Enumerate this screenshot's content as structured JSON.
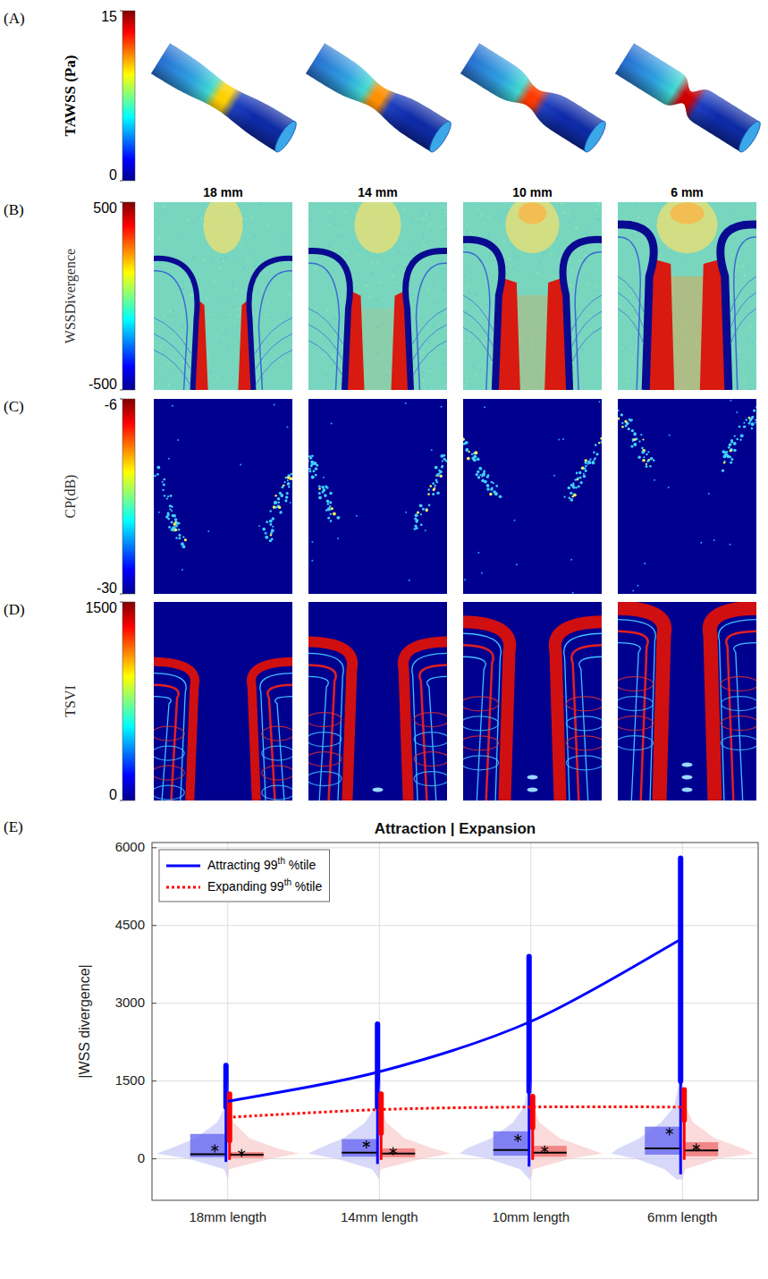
{
  "figure": {
    "columns": [
      "18 mm",
      "14 mm",
      "10 mm",
      "6 mm"
    ],
    "panels": [
      {
        "letter": "(A)",
        "colorbar": {
          "label": "TAWSS (Pa)",
          "range": [
            0,
            15
          ],
          "ticks": [
            0,
            15
          ]
        }
      },
      {
        "letter": "(B)",
        "colorbar": {
          "label": "WSSDivergence",
          "range": [
            -500,
            500
          ],
          "ticks": [
            -500,
            500
          ]
        }
      },
      {
        "letter": "(C)",
        "colorbar": {
          "label": "CP(dB)",
          "range": [
            -30,
            -6
          ],
          "ticks": [
            -30,
            -6
          ]
        }
      },
      {
        "letter": "(D)",
        "colorbar": {
          "label": "TSVI",
          "range": [
            0,
            1500
          ],
          "ticks": [
            0,
            1500
          ]
        }
      },
      {
        "letter": "(E)"
      }
    ]
  },
  "chart_data": {
    "type": "violin",
    "title": "Attraction | Expansion",
    "y_label": "|WSS divergence|",
    "categories": [
      "18mm length",
      "14mm length",
      "10mm length",
      "6mm length"
    ],
    "ylim": [
      -800,
      6100
    ],
    "yticks": [
      0,
      1500,
      3000,
      4500,
      6000
    ],
    "grid": true,
    "legend": "upper left",
    "density_y": [
      -400,
      -200,
      0,
      100,
      200,
      400,
      700,
      1000,
      1500
    ],
    "series": [
      {
        "name": "Attracting 99th %tile",
        "color": "#0000ff",
        "line_style": "solid",
        "type": "line",
        "values": [
          1110,
          1680,
          2650,
          4250
        ],
        "boxes": [
          {
            "whisker_low": -60,
            "q1": 30,
            "median": 90,
            "q3": 480,
            "mean": 200,
            "whisker_high": 1000,
            "max": 1800,
            "density": [
              0,
              0.05,
              0.55,
              1,
              0.8,
              0.45,
              0.15,
              0.04,
              0
            ]
          },
          {
            "whisker_low": -100,
            "q1": 40,
            "median": 120,
            "q3": 380,
            "mean": 280,
            "whisker_high": 1000,
            "max": 2600,
            "density": [
              0,
              0.1,
              0.6,
              1,
              0.85,
              0.5,
              0.2,
              0.06,
              0
            ]
          },
          {
            "whisker_low": -150,
            "q1": 60,
            "median": 170,
            "q3": 530,
            "mean": 400,
            "whisker_high": 1300,
            "max": 3900,
            "density": [
              0.02,
              0.15,
              0.6,
              1,
              0.9,
              0.55,
              0.25,
              0.1,
              0.02
            ]
          },
          {
            "whisker_low": -300,
            "q1": 80,
            "median": 200,
            "q3": 620,
            "mean": 530,
            "whisker_high": 1500,
            "max": 5800,
            "density": [
              0.08,
              0.25,
              0.65,
              1,
              0.9,
              0.6,
              0.3,
              0.12,
              0.04
            ]
          }
        ]
      },
      {
        "name": "Expanding 99th %tile",
        "color": "#ff0000",
        "line_style": "dotted",
        "type": "line",
        "values": [
          800,
          950,
          1000,
          1000
        ],
        "boxes": [
          {
            "whisker_low": -20,
            "q1": 20,
            "median": 80,
            "q3": 130,
            "mean": 110,
            "whisker_high": 350,
            "max": 1250,
            "density": [
              0,
              0.02,
              0.6,
              1,
              0.7,
              0.3,
              0.08,
              0.02,
              0
            ]
          },
          {
            "whisker_low": -20,
            "q1": 30,
            "median": 100,
            "q3": 200,
            "mean": 150,
            "whisker_high": 500,
            "max": 1250,
            "density": [
              0,
              0.02,
              0.6,
              1,
              0.75,
              0.35,
              0.1,
              0.03,
              0
            ]
          },
          {
            "whisker_low": -20,
            "q1": 40,
            "median": 120,
            "q3": 250,
            "mean": 180,
            "whisker_high": 600,
            "max": 1200,
            "density": [
              0,
              0.03,
              0.55,
              1,
              0.8,
              0.4,
              0.12,
              0.04,
              0
            ]
          },
          {
            "whisker_low": -20,
            "q1": 50,
            "median": 160,
            "q3": 320,
            "mean": 220,
            "whisker_high": 750,
            "max": 1330,
            "density": [
              0,
              0.04,
              0.5,
              1,
              0.85,
              0.45,
              0.15,
              0.05,
              0
            ]
          }
        ]
      }
    ]
  }
}
